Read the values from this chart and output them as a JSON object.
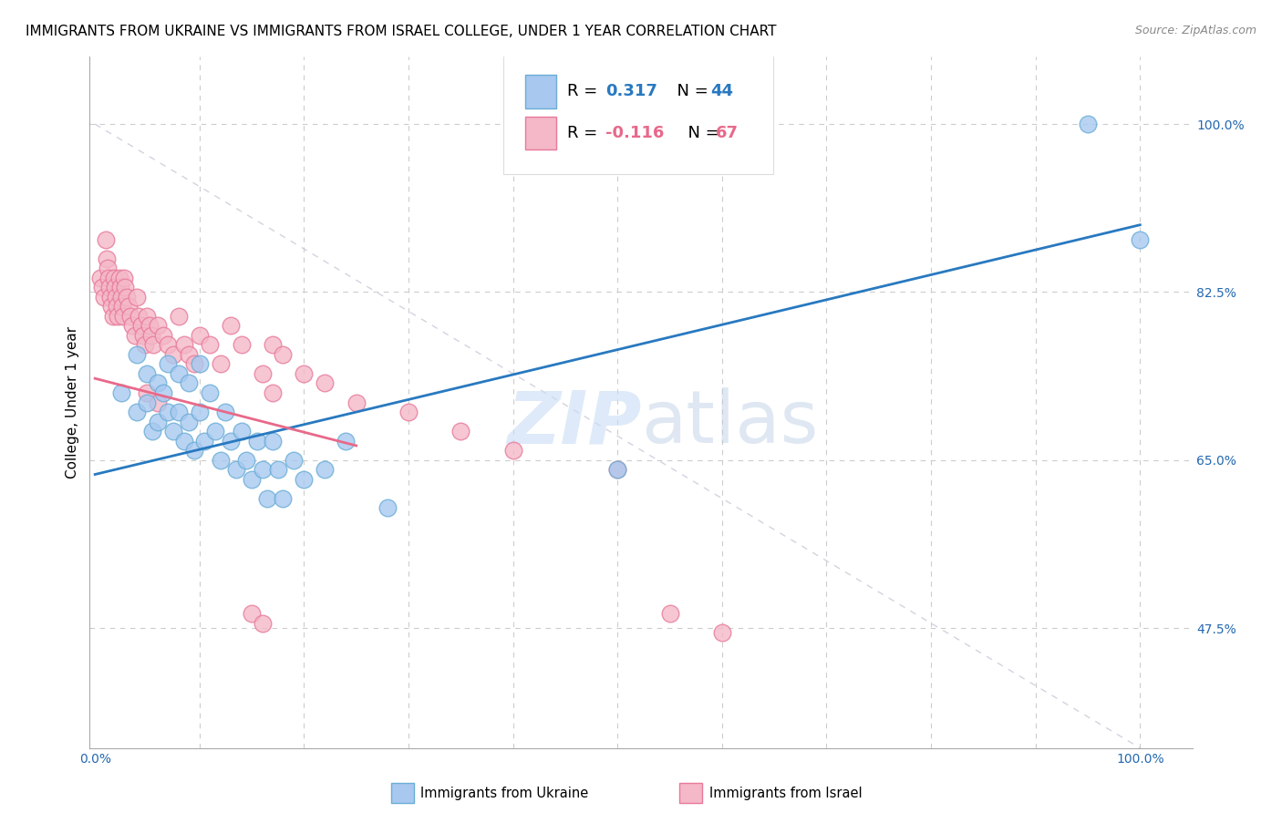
{
  "title": "IMMIGRANTS FROM UKRAINE VS IMMIGRANTS FROM ISRAEL COLLEGE, UNDER 1 YEAR CORRELATION CHART",
  "source": "Source: ZipAtlas.com",
  "ylabel": "College, Under 1 year",
  "ukraine_color": "#a8c8f0",
  "ukraine_edge": "#6aaed6",
  "israel_color": "#f4b8c8",
  "israel_edge": "#e87a9a",
  "ukraine_line_color": "#2879c0",
  "israel_line_color": "#e8698a",
  "dashed_line_color": "#c8c8d8",
  "ukraine_scatter_x": [
    0.025,
    0.04,
    0.04,
    0.05,
    0.05,
    0.055,
    0.06,
    0.06,
    0.065,
    0.07,
    0.07,
    0.075,
    0.08,
    0.08,
    0.085,
    0.09,
    0.09,
    0.095,
    0.1,
    0.1,
    0.105,
    0.11,
    0.115,
    0.12,
    0.125,
    0.13,
    0.135,
    0.14,
    0.145,
    0.15,
    0.155,
    0.16,
    0.165,
    0.17,
    0.175,
    0.18,
    0.19,
    0.2,
    0.22,
    0.24,
    0.28,
    0.5,
    0.95,
    1.0
  ],
  "ukraine_scatter_y": [
    0.72,
    0.76,
    0.7,
    0.74,
    0.71,
    0.68,
    0.73,
    0.69,
    0.72,
    0.75,
    0.7,
    0.68,
    0.74,
    0.7,
    0.67,
    0.73,
    0.69,
    0.66,
    0.75,
    0.7,
    0.67,
    0.72,
    0.68,
    0.65,
    0.7,
    0.67,
    0.64,
    0.68,
    0.65,
    0.63,
    0.67,
    0.64,
    0.61,
    0.67,
    0.64,
    0.61,
    0.65,
    0.63,
    0.64,
    0.67,
    0.6,
    0.64,
    1.0,
    0.88
  ],
  "israel_scatter_x": [
    0.005,
    0.007,
    0.009,
    0.01,
    0.011,
    0.012,
    0.013,
    0.014,
    0.015,
    0.016,
    0.017,
    0.018,
    0.019,
    0.02,
    0.021,
    0.022,
    0.023,
    0.024,
    0.025,
    0.026,
    0.027,
    0.028,
    0.029,
    0.03,
    0.032,
    0.034,
    0.036,
    0.038,
    0.04,
    0.042,
    0.044,
    0.046,
    0.048,
    0.05,
    0.052,
    0.054,
    0.056,
    0.06,
    0.065,
    0.07,
    0.075,
    0.08,
    0.085,
    0.09,
    0.095,
    0.1,
    0.11,
    0.12,
    0.13,
    0.14,
    0.15,
    0.16,
    0.17,
    0.18,
    0.2,
    0.22,
    0.25,
    0.3,
    0.35,
    0.4,
    0.5,
    0.55,
    0.6,
    0.05,
    0.06,
    0.16,
    0.17
  ],
  "israel_scatter_y": [
    0.84,
    0.83,
    0.82,
    0.88,
    0.86,
    0.85,
    0.84,
    0.83,
    0.82,
    0.81,
    0.8,
    0.84,
    0.83,
    0.82,
    0.81,
    0.8,
    0.84,
    0.83,
    0.82,
    0.81,
    0.8,
    0.84,
    0.83,
    0.82,
    0.81,
    0.8,
    0.79,
    0.78,
    0.82,
    0.8,
    0.79,
    0.78,
    0.77,
    0.8,
    0.79,
    0.78,
    0.77,
    0.79,
    0.78,
    0.77,
    0.76,
    0.8,
    0.77,
    0.76,
    0.75,
    0.78,
    0.77,
    0.75,
    0.79,
    0.77,
    0.49,
    0.48,
    0.77,
    0.76,
    0.74,
    0.73,
    0.71,
    0.7,
    0.68,
    0.66,
    0.64,
    0.49,
    0.47,
    0.72,
    0.71,
    0.74,
    0.72
  ],
  "ukraine_line_x": [
    0.0,
    1.0
  ],
  "ukraine_line_y": [
    0.635,
    0.895
  ],
  "israel_line_x": [
    0.0,
    0.25
  ],
  "israel_line_y": [
    0.735,
    0.665
  ],
  "dashed_line_x": [
    0.0,
    1.0
  ],
  "dashed_line_y": [
    1.0,
    0.35
  ],
  "xlim": [
    -0.005,
    1.05
  ],
  "ylim": [
    0.35,
    1.07
  ],
  "ytick_vals": [
    0.475,
    0.65,
    0.825,
    1.0
  ],
  "ytick_labels": [
    "47.5%",
    "65.0%",
    "82.5%",
    "100.0%"
  ],
  "background_color": "#ffffff",
  "title_fontsize": 11,
  "source_fontsize": 9
}
